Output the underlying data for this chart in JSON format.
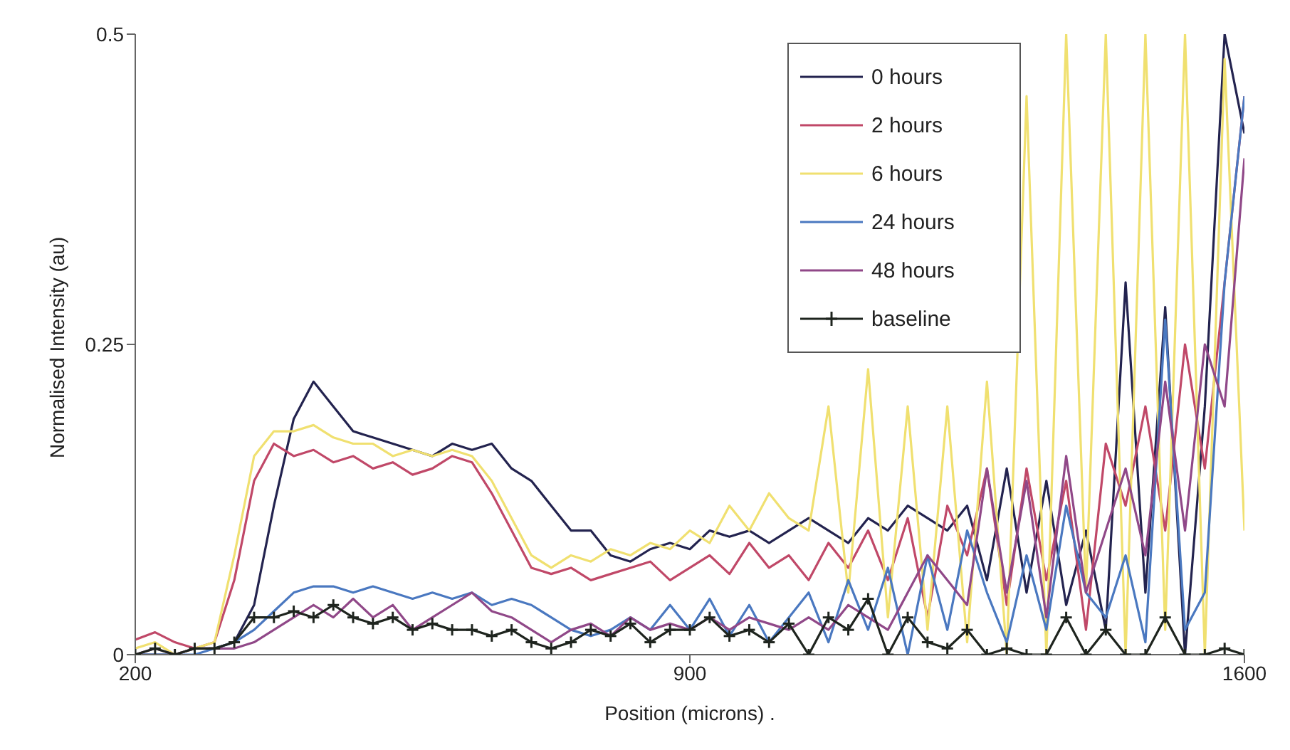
{
  "chart_data": {
    "type": "line",
    "xlabel": "Position (microns) .",
    "ylabel": "Normalised Intensity (au)",
    "x": [
      200,
      225,
      250,
      275,
      300,
      325,
      350,
      375,
      400,
      425,
      450,
      475,
      500,
      525,
      550,
      575,
      600,
      625,
      650,
      675,
      700,
      725,
      750,
      775,
      800,
      825,
      850,
      875,
      900,
      925,
      950,
      975,
      1000,
      1025,
      1050,
      1075,
      1100,
      1125,
      1150,
      1175,
      1200,
      1225,
      1250,
      1275,
      1300,
      1325,
      1350,
      1375,
      1400,
      1425,
      1450,
      1475,
      1500,
      1525,
      1550,
      1575,
      1600
    ],
    "series": [
      {
        "name": "0 hours",
        "color": "#23234f",
        "values": [
          0,
          0,
          0,
          0.005,
          0.005,
          0.01,
          0.04,
          0.12,
          0.19,
          0.22,
          0.2,
          0.18,
          0.175,
          0.17,
          0.165,
          0.16,
          0.17,
          0.165,
          0.17,
          0.15,
          0.14,
          0.12,
          0.1,
          0.1,
          0.08,
          0.075,
          0.085,
          0.09,
          0.085,
          0.1,
          0.095,
          0.1,
          0.09,
          0.1,
          0.11,
          0.1,
          0.09,
          0.11,
          0.1,
          0.12,
          0.11,
          0.1,
          0.12,
          0.06,
          0.15,
          0.05,
          0.14,
          0.04,
          0.1,
          0.02,
          0.3,
          0.05,
          0.28,
          0,
          0.2,
          0.5,
          0.42
        ]
      },
      {
        "name": "2 hours",
        "color": "#c04868",
        "values": [
          0.012,
          0.018,
          0.01,
          0.005,
          0.01,
          0.06,
          0.14,
          0.17,
          0.16,
          0.165,
          0.155,
          0.16,
          0.15,
          0.155,
          0.145,
          0.15,
          0.16,
          0.155,
          0.13,
          0.1,
          0.07,
          0.065,
          0.07,
          0.06,
          0.065,
          0.07,
          0.075,
          0.06,
          0.07,
          0.08,
          0.065,
          0.09,
          0.07,
          0.08,
          0.06,
          0.09,
          0.07,
          0.1,
          0.06,
          0.11,
          0.03,
          0.12,
          0.08,
          0.15,
          0.04,
          0.15,
          0.06,
          0.14,
          0.02,
          0.17,
          0.12,
          0.2,
          0.1,
          0.25,
          0.15,
          0.3,
          0.45
        ]
      },
      {
        "name": "6 hours",
        "color": "#f0e070",
        "values": [
          0.005,
          0.01,
          0,
          0.005,
          0.01,
          0.08,
          0.16,
          0.18,
          0.18,
          0.185,
          0.175,
          0.17,
          0.17,
          0.16,
          0.165,
          0.16,
          0.165,
          0.16,
          0.14,
          0.11,
          0.08,
          0.07,
          0.08,
          0.075,
          0.085,
          0.08,
          0.09,
          0.085,
          0.1,
          0.09,
          0.12,
          0.1,
          0.13,
          0.11,
          0.1,
          0.2,
          0.05,
          0.23,
          0.03,
          0.2,
          0.02,
          0.2,
          0.01,
          0.22,
          0,
          0.45,
          0,
          0.5,
          0.05,
          0.5,
          0,
          0.5,
          0.02,
          0.5,
          0,
          0.48,
          0.1
        ]
      },
      {
        "name": "24 hours",
        "color": "#4a78c0",
        "values": [
          0,
          0,
          0,
          0,
          0.005,
          0.01,
          0.02,
          0.035,
          0.05,
          0.055,
          0.055,
          0.05,
          0.055,
          0.05,
          0.045,
          0.05,
          0.045,
          0.05,
          0.04,
          0.045,
          0.04,
          0.03,
          0.02,
          0.015,
          0.02,
          0.03,
          0.02,
          0.04,
          0.02,
          0.045,
          0.015,
          0.04,
          0.01,
          0.03,
          0.05,
          0.01,
          0.06,
          0.02,
          0.07,
          0,
          0.08,
          0.02,
          0.1,
          0.05,
          0.01,
          0.08,
          0.02,
          0.12,
          0.05,
          0.03,
          0.08,
          0.01,
          0.27,
          0.02,
          0.05,
          0.3,
          0.45
        ]
      },
      {
        "name": "48 hours",
        "color": "#904888",
        "values": [
          0,
          0.005,
          0,
          0.005,
          0.005,
          0.005,
          0.01,
          0.02,
          0.03,
          0.04,
          0.03,
          0.045,
          0.03,
          0.04,
          0.02,
          0.03,
          0.04,
          0.05,
          0.035,
          0.03,
          0.02,
          0.01,
          0.02,
          0.025,
          0.015,
          0.03,
          0.02,
          0.025,
          0.02,
          0.03,
          0.02,
          0.03,
          0.025,
          0.02,
          0.03,
          0.02,
          0.04,
          0.03,
          0.02,
          0.05,
          0.08,
          0.06,
          0.04,
          0.15,
          0.05,
          0.14,
          0.03,
          0.16,
          0.05,
          0.1,
          0.15,
          0.08,
          0.22,
          0.1,
          0.25,
          0.2,
          0.4
        ]
      },
      {
        "name": "baseline",
        "color": "#1e241e",
        "marker": "cross",
        "values": [
          0,
          0.005,
          0,
          0.005,
          0.005,
          0.01,
          0.03,
          0.03,
          0.035,
          0.03,
          0.04,
          0.03,
          0.025,
          0.03,
          0.02,
          0.025,
          0.02,
          0.02,
          0.015,
          0.02,
          0.01,
          0.005,
          0.01,
          0.02,
          0.015,
          0.025,
          0.01,
          0.02,
          0.02,
          0.03,
          0.015,
          0.02,
          0.01,
          0.025,
          0,
          0.03,
          0.02,
          0.045,
          0,
          0.03,
          0.01,
          0.005,
          0.02,
          0,
          0.005,
          0,
          0,
          0.03,
          0,
          0.02,
          0,
          0,
          0.03,
          0,
          0,
          0.005,
          0
        ]
      }
    ],
    "xlim": [
      200,
      1600
    ],
    "xticks": [
      200,
      900,
      1600
    ],
    "ylim": [
      0,
      0.5
    ],
    "yticks": [
      0,
      0.25,
      0.5
    ],
    "marker": "none",
    "line_style": "solid",
    "legend": "top right",
    "grid": false
  }
}
